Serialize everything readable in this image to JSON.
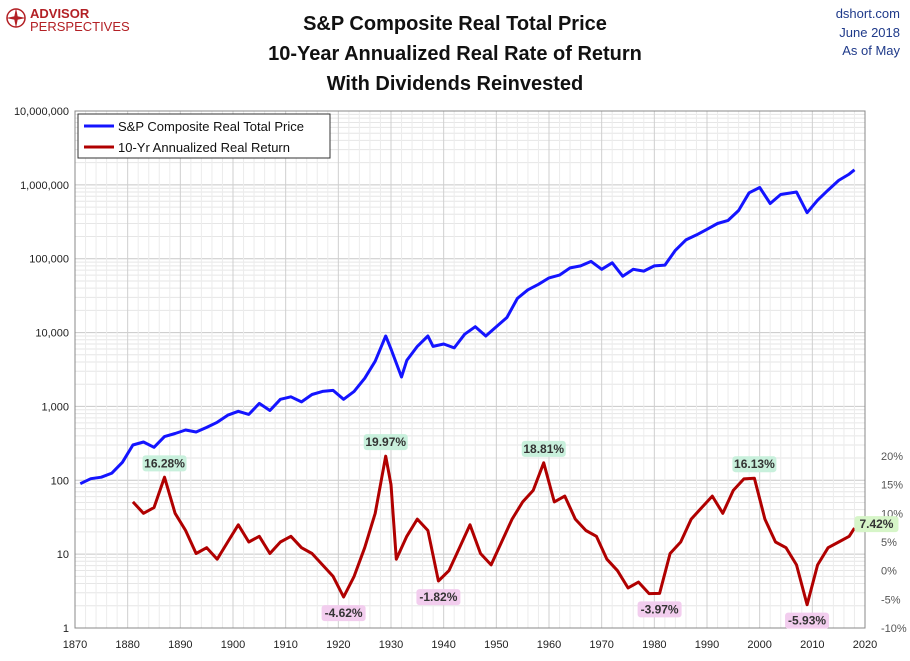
{
  "logo": {
    "line1": "ADVISOR",
    "line2": "PERSPECTIVES"
  },
  "header": {
    "title_lines": [
      "S&P Composite Real Total Price",
      "10-Year Annualized Real Rate of Return",
      "With Dividends Reinvested"
    ],
    "source": "dshort.com",
    "date": "June 2018",
    "as_of": "As of May"
  },
  "chart_data": {
    "type": "line",
    "x_ticks": [
      "1870",
      "1880",
      "1890",
      "1900",
      "1910",
      "1920",
      "1930",
      "1940",
      "1950",
      "1960",
      "1970",
      "1980",
      "1990",
      "2000",
      "2010",
      "2020"
    ],
    "xlim": [
      1870,
      2020
    ],
    "left_axis": {
      "scale": "log",
      "ylim": [
        1,
        10000000
      ],
      "tick_labels": [
        "1",
        "10",
        "100",
        "1,000",
        "10,000",
        "100,000",
        "1,000,000",
        "10,000,000"
      ]
    },
    "right_axis": {
      "ylim": [
        -10,
        20
      ],
      "tick_labels": [
        "-10%",
        "-5%",
        "0%",
        "5%",
        "10%",
        "15%",
        "20%"
      ]
    },
    "grid": true,
    "legend": {
      "placement": "top-left",
      "entries": [
        "S&P Composite Real Total Price",
        "10-Yr Annualized Real Return"
      ]
    },
    "colors": {
      "price": "#1414ff",
      "return": "#b00000"
    },
    "series": [
      {
        "name": "S&P Composite Real Total Price",
        "axis": "left",
        "x": [
          1871,
          1873,
          1875,
          1877,
          1879,
          1881,
          1883,
          1885,
          1887,
          1889,
          1891,
          1893,
          1895,
          1897,
          1899,
          1901,
          1903,
          1905,
          1907,
          1909,
          1911,
          1913,
          1915,
          1917,
          1919,
          1921,
          1923,
          1925,
          1927,
          1929,
          1930,
          1932,
          1933,
          1935,
          1937,
          1938,
          1940,
          1942,
          1944,
          1946,
          1948,
          1950,
          1952,
          1954,
          1956,
          1958,
          1960,
          1962,
          1964,
          1966,
          1968,
          1970,
          1972,
          1974,
          1976,
          1978,
          1980,
          1982,
          1984,
          1986,
          1988,
          1990,
          1992,
          1994,
          1996,
          1998,
          2000,
          2002,
          2004,
          2007,
          2009,
          2011,
          2013,
          2015,
          2017,
          2018
        ],
        "y": [
          90,
          105,
          110,
          125,
          175,
          300,
          330,
          280,
          390,
          430,
          480,
          450,
          520,
          610,
          760,
          860,
          780,
          1100,
          880,
          1250,
          1350,
          1150,
          1450,
          1600,
          1650,
          1250,
          1600,
          2400,
          4100,
          9000,
          6000,
          2500,
          4200,
          6500,
          9000,
          6500,
          7000,
          6200,
          9500,
          12000,
          9000,
          12000,
          16000,
          29000,
          38000,
          45000,
          55000,
          60000,
          75000,
          80000,
          92000,
          72000,
          88000,
          58000,
          72000,
          68000,
          80000,
          82000,
          130000,
          180000,
          210000,
          250000,
          300000,
          330000,
          450000,
          780000,
          920000,
          560000,
          740000,
          800000,
          420000,
          620000,
          850000,
          1150000,
          1400000,
          1600000
        ]
      },
      {
        "name": "10-Yr Annualized Real Return",
        "axis": "right",
        "x": [
          1881,
          1883,
          1885,
          1887,
          1889,
          1891,
          1893,
          1895,
          1897,
          1899,
          1901,
          1903,
          1905,
          1907,
          1909,
          1911,
          1913,
          1915,
          1917,
          1919,
          1921,
          1923,
          1925,
          1927,
          1929,
          1930,
          1931,
          1933,
          1935,
          1937,
          1939,
          1941,
          1943,
          1945,
          1947,
          1949,
          1951,
          1953,
          1955,
          1957,
          1959,
          1961,
          1963,
          1965,
          1967,
          1969,
          1971,
          1973,
          1975,
          1977,
          1979,
          1981,
          1983,
          1985,
          1987,
          1989,
          1991,
          1993,
          1995,
          1997,
          1999,
          2001,
          2003,
          2005,
          2007,
          2009,
          2011,
          2013,
          2015,
          2017,
          2018
        ],
        "y": [
          12,
          10,
          11,
          16.3,
          10,
          7,
          3,
          4,
          2,
          5,
          8,
          5,
          6,
          3,
          5,
          6,
          4,
          3,
          1,
          -1,
          -4.6,
          -1,
          4,
          10,
          19.97,
          15,
          2,
          6,
          9,
          7,
          -1.8,
          0,
          4,
          8,
          3,
          1,
          5,
          9,
          12,
          14,
          18.81,
          12,
          13,
          9,
          7,
          6,
          2,
          0,
          -3,
          -2,
          -4,
          -3.97,
          3,
          5,
          9,
          11,
          13,
          10,
          14,
          16,
          16.13,
          9,
          5,
          4,
          1,
          -5.93,
          1,
          4,
          5,
          6,
          7.42
        ]
      }
    ],
    "annotations": [
      {
        "label": "16.28%",
        "x": 1887,
        "y": 16.28,
        "kind": "high"
      },
      {
        "label": "-4.62%",
        "x": 1921,
        "y": -4.62,
        "kind": "low"
      },
      {
        "label": "19.97%",
        "x": 1929,
        "y": 19.97,
        "kind": "high"
      },
      {
        "label": "-1.82%",
        "x": 1939,
        "y": -1.82,
        "kind": "low"
      },
      {
        "label": "18.81%",
        "x": 1959,
        "y": 18.81,
        "kind": "high"
      },
      {
        "label": "-3.97%",
        "x": 1981,
        "y": -3.97,
        "kind": "low"
      },
      {
        "label": "16.13%",
        "x": 1999,
        "y": 16.13,
        "kind": "high"
      },
      {
        "label": "-5.93%",
        "x": 2009,
        "y": -5.93,
        "kind": "low"
      },
      {
        "label": "7.42%",
        "x": 2018,
        "y": 7.42,
        "kind": "current"
      }
    ],
    "annotation_colors": {
      "high": "#c8f0dc",
      "low": "#f2cdee",
      "current": "#d6f5c8"
    }
  }
}
